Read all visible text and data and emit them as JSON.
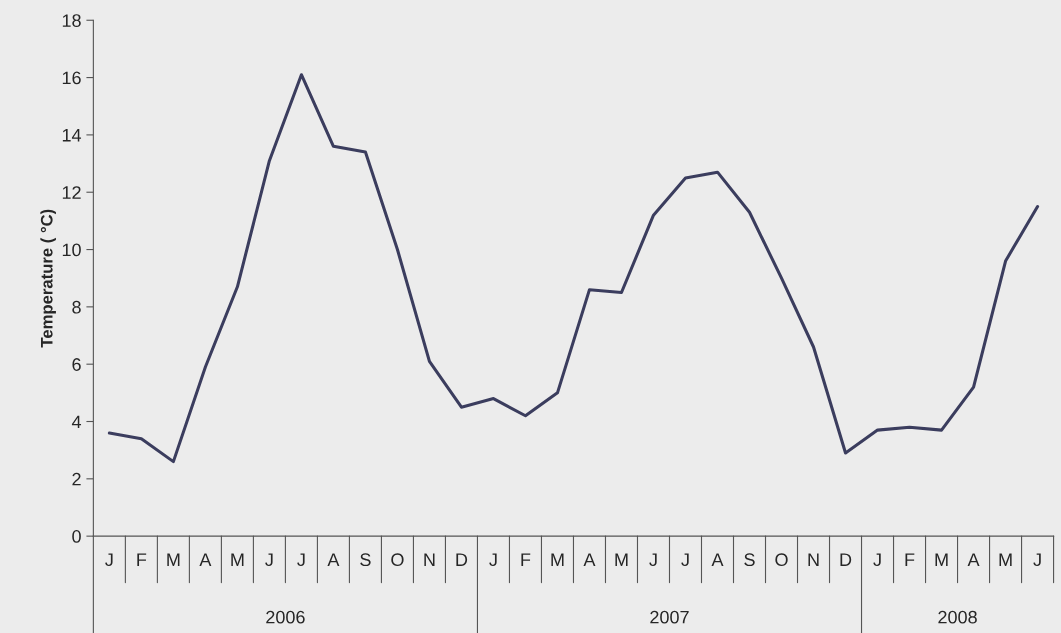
{
  "chart_data": {
    "type": "line",
    "ylabel": "Temperature ( °C)",
    "categories": [
      "J",
      "F",
      "M",
      "A",
      "M",
      "J",
      "J",
      "A",
      "S",
      "O",
      "N",
      "D",
      "J",
      "F",
      "M",
      "A",
      "M",
      "J",
      "J",
      "A",
      "S",
      "O",
      "N",
      "D",
      "J",
      "F",
      "M",
      "A",
      "M",
      "J"
    ],
    "series": [
      {
        "color": "#3b3d5e",
        "values": [
          3.6,
          3.4,
          2.6,
          5.9,
          8.7,
          13.1,
          16.1,
          13.6,
          13.4,
          10.0,
          6.1,
          4.5,
          4.8,
          4.2,
          5.0,
          8.6,
          8.5,
          11.2,
          12.5,
          12.7,
          11.3,
          9.0,
          6.6,
          2.9,
          3.7,
          3.8,
          3.7,
          5.2,
          9.6,
          11.5
        ]
      }
    ],
    "ylim": [
      0,
      18
    ],
    "yticks": [
      0,
      2,
      4,
      6,
      8,
      10,
      12,
      14,
      16,
      18
    ],
    "annotations": [
      "2006",
      "2007",
      "2008"
    ],
    "grid": false,
    "legend": false,
    "marker": "none",
    "line_style": "solid"
  }
}
